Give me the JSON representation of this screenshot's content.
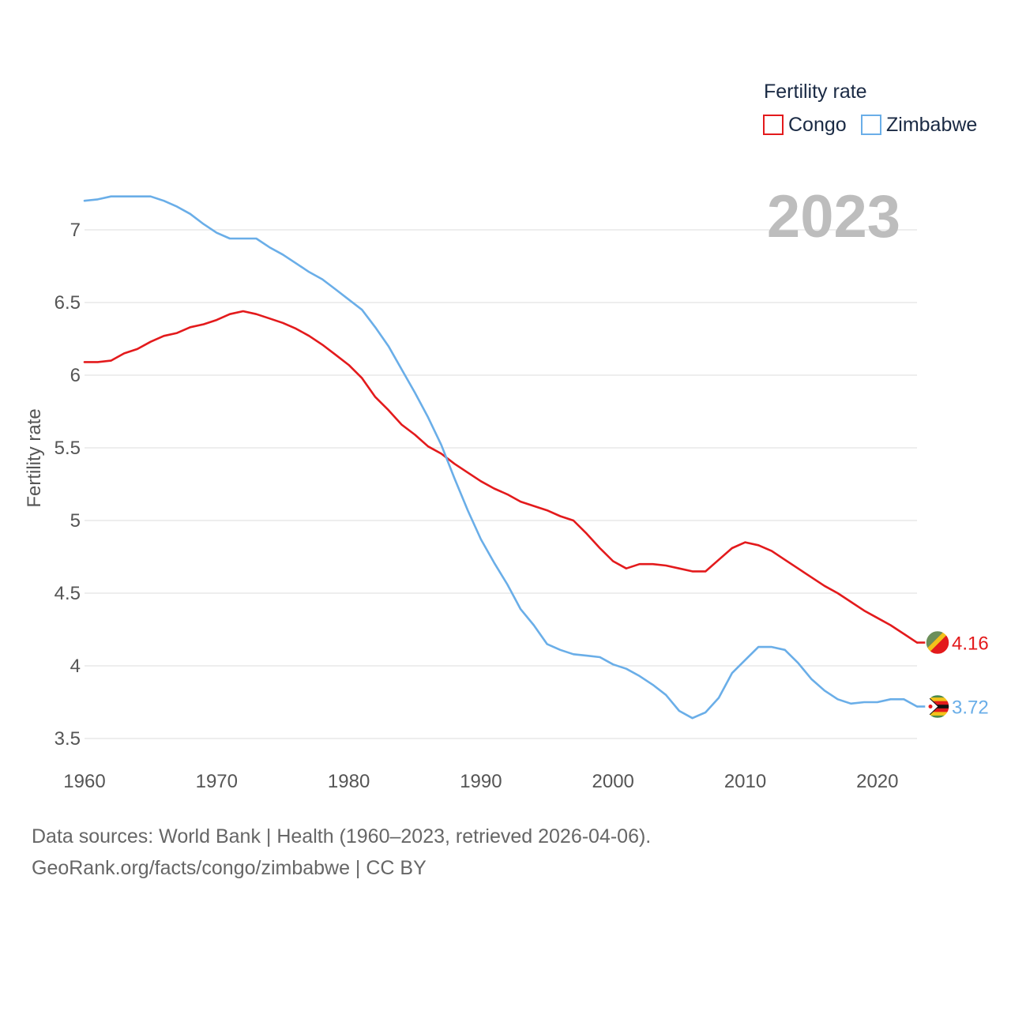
{
  "chart_data": {
    "type": "line",
    "title": "",
    "xlabel": "",
    "ylabel": "Fertility rate",
    "xlim": [
      1960,
      2023
    ],
    "ylim": [
      3.5,
      7.3
    ],
    "x_ticks": [
      "1960",
      "1970",
      "1980",
      "1990",
      "2000",
      "2010",
      "2020"
    ],
    "y_ticks": [
      "3.5",
      "4",
      "4.5",
      "5",
      "5.5",
      "6",
      "6.5",
      "7"
    ],
    "current_year": "2023",
    "legend": {
      "title": "Fertility rate",
      "position": "top-right"
    },
    "x": [
      1960,
      1961,
      1962,
      1963,
      1964,
      1965,
      1966,
      1967,
      1968,
      1969,
      1970,
      1971,
      1972,
      1973,
      1974,
      1975,
      1976,
      1977,
      1978,
      1979,
      1980,
      1981,
      1982,
      1983,
      1984,
      1985,
      1986,
      1987,
      1988,
      1989,
      1990,
      1991,
      1992,
      1993,
      1994,
      1995,
      1996,
      1997,
      1998,
      1999,
      2000,
      2001,
      2002,
      2003,
      2004,
      2005,
      2006,
      2007,
      2008,
      2009,
      2010,
      2011,
      2012,
      2013,
      2014,
      2015,
      2016,
      2017,
      2018,
      2019,
      2020,
      2021,
      2022,
      2023
    ],
    "series": [
      {
        "name": "Congo",
        "color": "#e31a1c",
        "end_label": "4.16",
        "values": [
          6.09,
          6.09,
          6.1,
          6.15,
          6.18,
          6.23,
          6.27,
          6.29,
          6.33,
          6.35,
          6.38,
          6.42,
          6.44,
          6.42,
          6.39,
          6.36,
          6.32,
          6.27,
          6.21,
          6.14,
          6.07,
          5.98,
          5.85,
          5.76,
          5.66,
          5.59,
          5.51,
          5.46,
          5.39,
          5.33,
          5.27,
          5.22,
          5.18,
          5.13,
          5.1,
          5.07,
          5.03,
          5.0,
          4.91,
          4.81,
          4.72,
          4.67,
          4.7,
          4.7,
          4.69,
          4.67,
          4.65,
          4.65,
          4.73,
          4.81,
          4.85,
          4.83,
          4.79,
          4.73,
          4.67,
          4.61,
          4.55,
          4.5,
          4.44,
          4.38,
          4.33,
          4.28,
          4.22,
          4.16
        ]
      },
      {
        "name": "Zimbabwe",
        "color": "#6aaee8",
        "end_label": "3.72",
        "values": [
          7.2,
          7.21,
          7.23,
          7.23,
          7.23,
          7.23,
          7.2,
          7.16,
          7.11,
          7.04,
          6.98,
          6.94,
          6.94,
          6.94,
          6.88,
          6.83,
          6.77,
          6.71,
          6.66,
          6.59,
          6.52,
          6.45,
          6.33,
          6.2,
          6.04,
          5.88,
          5.71,
          5.52,
          5.29,
          5.07,
          4.87,
          4.71,
          4.56,
          4.39,
          4.28,
          4.15,
          4.11,
          4.08,
          4.07,
          4.06,
          4.01,
          3.98,
          3.93,
          3.87,
          3.8,
          3.69,
          3.64,
          3.68,
          3.78,
          3.95,
          4.04,
          4.13,
          4.13,
          4.11,
          4.02,
          3.91,
          3.83,
          3.77,
          3.74,
          3.75,
          3.75,
          3.77,
          3.77,
          3.72
        ]
      }
    ]
  },
  "footer": {
    "line1": "Data sources: World Bank | Health (1960–2023, retrieved 2026-04-06).",
    "line2": "GeoRank.org/facts/congo/zimbabwe | CC BY"
  }
}
